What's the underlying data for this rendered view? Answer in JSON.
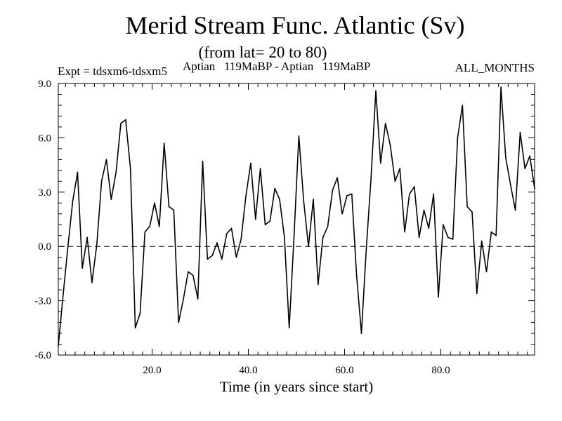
{
  "chart_data": {
    "type": "line",
    "title": "Merid Stream Func. Atlantic (Sv)",
    "subtitle": "(from lat= 20 to 80)",
    "experiment_label": "Expt = tdsxm6-tdsxm5",
    "comparison_label": "Aptian   119MaBP - Aptian   119MaBP",
    "period_label": "ALL_MONTHS",
    "xlabel": "Time (in years since start)",
    "ylabel": "",
    "xlim": [
      0.5,
      99.5
    ],
    "ylim": [
      -6.0,
      9.0
    ],
    "xticks": [
      20,
      40,
      60,
      80
    ],
    "xtick_labels": [
      "20.0",
      "40.0",
      "60.0",
      "80.0"
    ],
    "yticks": [
      -6,
      -3,
      0,
      3,
      6,
      9
    ],
    "ytick_labels": [
      "-6.0",
      "-3.0",
      "0.0",
      "3.0",
      "6.0",
      "9.0"
    ],
    "reference_line": {
      "y": 0.0,
      "style": "dashed"
    },
    "series": [
      {
        "name": "tdsxm6-tdsxm5",
        "color": "#000000",
        "x": [
          0.5,
          1.5,
          2.5,
          3.5,
          4.5,
          5.5,
          6.5,
          7.5,
          8.5,
          9.5,
          10.5,
          11.5,
          12.5,
          13.5,
          14.5,
          15.5,
          16.5,
          17.5,
          18.5,
          19.5,
          20.5,
          21.5,
          22.5,
          23.5,
          24.5,
          25.5,
          26.5,
          27.5,
          28.5,
          29.5,
          30.5,
          31.5,
          32.5,
          33.5,
          34.5,
          35.5,
          36.5,
          37.5,
          38.5,
          39.5,
          40.5,
          41.5,
          42.5,
          43.5,
          44.5,
          45.5,
          46.5,
          47.5,
          48.5,
          49.5,
          50.5,
          51.5,
          52.5,
          53.5,
          54.5,
          55.5,
          56.5,
          57.5,
          58.5,
          59.5,
          60.5,
          61.5,
          62.5,
          63.5,
          64.5,
          65.5,
          66.5,
          67.5,
          68.5,
          69.5,
          70.5,
          71.5,
          72.5,
          73.5,
          74.5,
          75.5,
          76.5,
          77.5,
          78.5,
          79.5,
          80.5,
          81.5,
          82.5,
          83.5,
          84.5,
          85.5,
          86.5,
          87.5,
          88.5,
          89.5,
          90.5,
          91.5,
          92.5,
          93.5,
          94.5,
          95.5,
          96.5,
          97.5,
          98.5,
          99.5
        ],
        "values": [
          -5.5,
          -2.7,
          0,
          2.5,
          4.1,
          -1.2,
          0.5,
          -2.0,
          0.1,
          3.6,
          4.8,
          2.6,
          4.1,
          6.8,
          7.0,
          4.3,
          -4.5,
          -3.7,
          0.8,
          1.1,
          2.4,
          1.1,
          5.7,
          2.2,
          2.0,
          -4.2,
          -2.9,
          -1.4,
          -1.6,
          -2.9,
          4.7,
          -0.7,
          -0.5,
          0.2,
          -0.7,
          0.7,
          1.0,
          -0.6,
          0.4,
          2.8,
          4.6,
          1.5,
          4.3,
          1.2,
          1.4,
          3.2,
          2.6,
          0.5,
          -4.5,
          0.6,
          6.1,
          2.5,
          0,
          2.6,
          -2.1,
          0.5,
          1.1,
          3.1,
          3.8,
          1.8,
          2.8,
          2.9,
          -1.6,
          -4.8,
          -0.2,
          3.8,
          8.6,
          4.6,
          6.8,
          5.6,
          3.6,
          4.3,
          0.8,
          2.9,
          3.3,
          0.5,
          2.0,
          1.0,
          2.9,
          -2.8,
          1.2,
          0.5,
          0.4,
          6.0,
          7.8,
          2.2,
          1.9,
          -2.6,
          0.3,
          -1.4,
          0.8,
          0.6,
          8.8,
          4.9,
          3.4,
          2.0,
          6.3,
          4.3,
          5.0,
          3.2
        ]
      }
    ]
  }
}
